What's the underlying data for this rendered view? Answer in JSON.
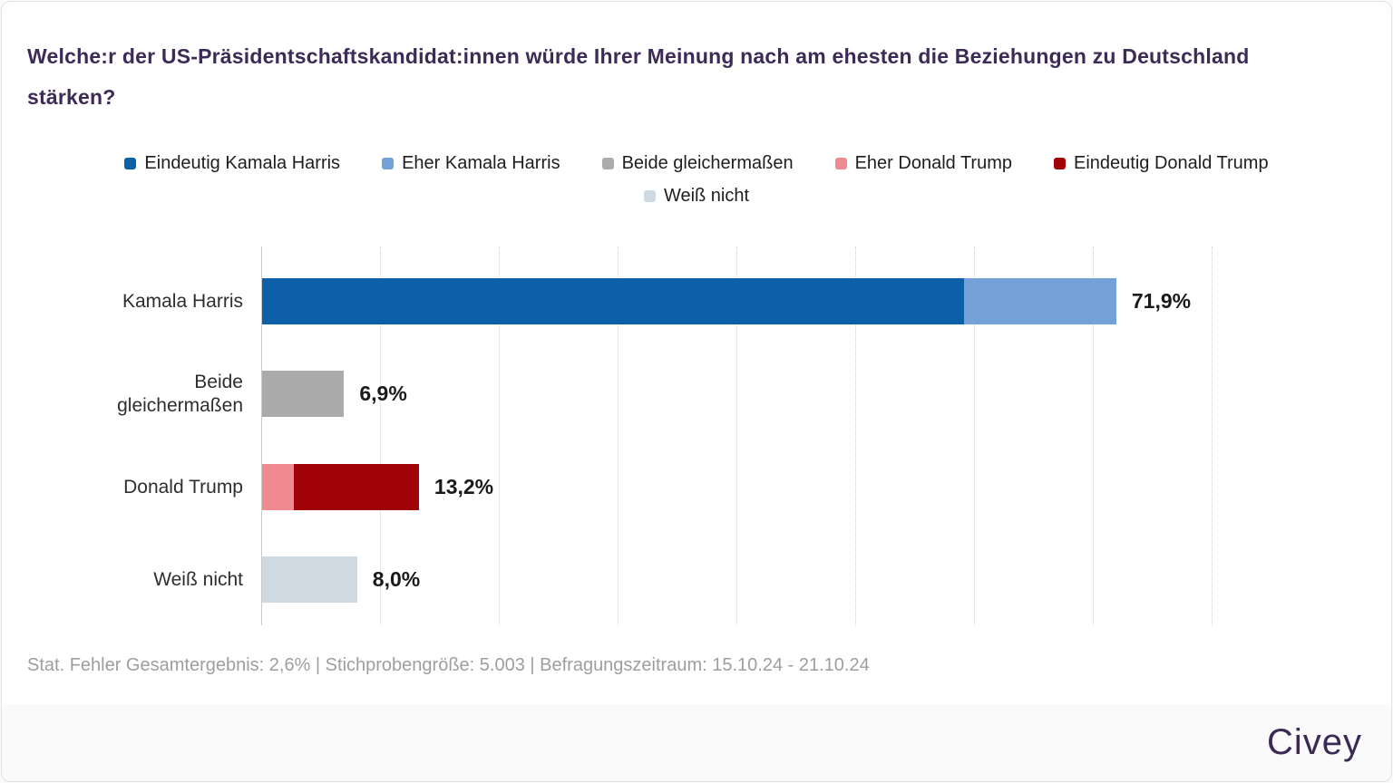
{
  "header": {
    "title": "Welche:r der US-Präsidentschaftskandidat:innen würde Ihrer Meinung nach am ehesten die Beziehungen zu Deutschland stärken?"
  },
  "footer": {
    "note": "Stat. Fehler Gesamtergebnis: 2,6% | Stichprobengröße: 5.003 | Befragungszeitraum: 15.10.24 - 21.10.24",
    "brand": "Civey"
  },
  "colors": {
    "title_text": "#3d2b57",
    "brand_text": "#3b2a55",
    "eindeutig_kamala": "#0b60a7",
    "eher_kamala": "#74a1d8",
    "beide": "#ababab",
    "eher_trump": "#ef8a90",
    "eindeutig_trump": "#a00307",
    "weiss_nicht": "#cfd9e1"
  },
  "chart_data": {
    "type": "bar",
    "orientation": "horizontal-stacked",
    "title": "Welche:r der US-Präsidentschaftskandidat:innen würde Ihrer Meinung nach am ehesten die Beziehungen zu Deutschland stärken?",
    "legend_position": "top-center",
    "grid": "dotted-vertical",
    "xlim": [
      0,
      80
    ],
    "gridline_step_percent": 10,
    "value_suffix": "%",
    "legend": [
      {
        "label": "Eindeutig Kamala Harris",
        "color": "#0b60a7",
        "row": 1
      },
      {
        "label": "Eher Kamala Harris",
        "color": "#74a1d8",
        "row": 1
      },
      {
        "label": "Beide gleichermaßen",
        "color": "#ababab",
        "row": 1
      },
      {
        "label": "Eher Donald Trump",
        "color": "#ef8a90",
        "row": 1
      },
      {
        "label": "Eindeutig Donald Trump",
        "color": "#a00307",
        "row": 1
      },
      {
        "label": "Weiß nicht",
        "color": "#cfd9e1",
        "row": 2
      }
    ],
    "categories": [
      "Kamala Harris",
      "Beide gleichermaßen",
      "Donald Trump",
      "Weiß nicht"
    ],
    "rows": [
      {
        "category": "Kamala Harris",
        "value_label": "71,9%",
        "total": 71.9,
        "segments": [
          {
            "legend": "Eindeutig Kamala Harris",
            "value": 59.1
          },
          {
            "legend": "Eher Kamala Harris",
            "value": 12.8
          }
        ]
      },
      {
        "category": "Beide gleichermaßen",
        "value_label": "6,9%",
        "total": 6.9,
        "segments": [
          {
            "legend": "Beide gleichermaßen",
            "value": 6.9
          }
        ]
      },
      {
        "category": "Donald Trump",
        "value_label": "13,2%",
        "total": 13.2,
        "segments": [
          {
            "legend": "Eher Donald Trump",
            "value": 2.7
          },
          {
            "legend": "Eindeutig Donald Trump",
            "value": 10.5
          }
        ]
      },
      {
        "category": "Weiß nicht",
        "value_label": "8,0%",
        "total": 8.0,
        "segments": [
          {
            "legend": "Weiß nicht",
            "value": 8.0
          }
        ]
      }
    ]
  }
}
